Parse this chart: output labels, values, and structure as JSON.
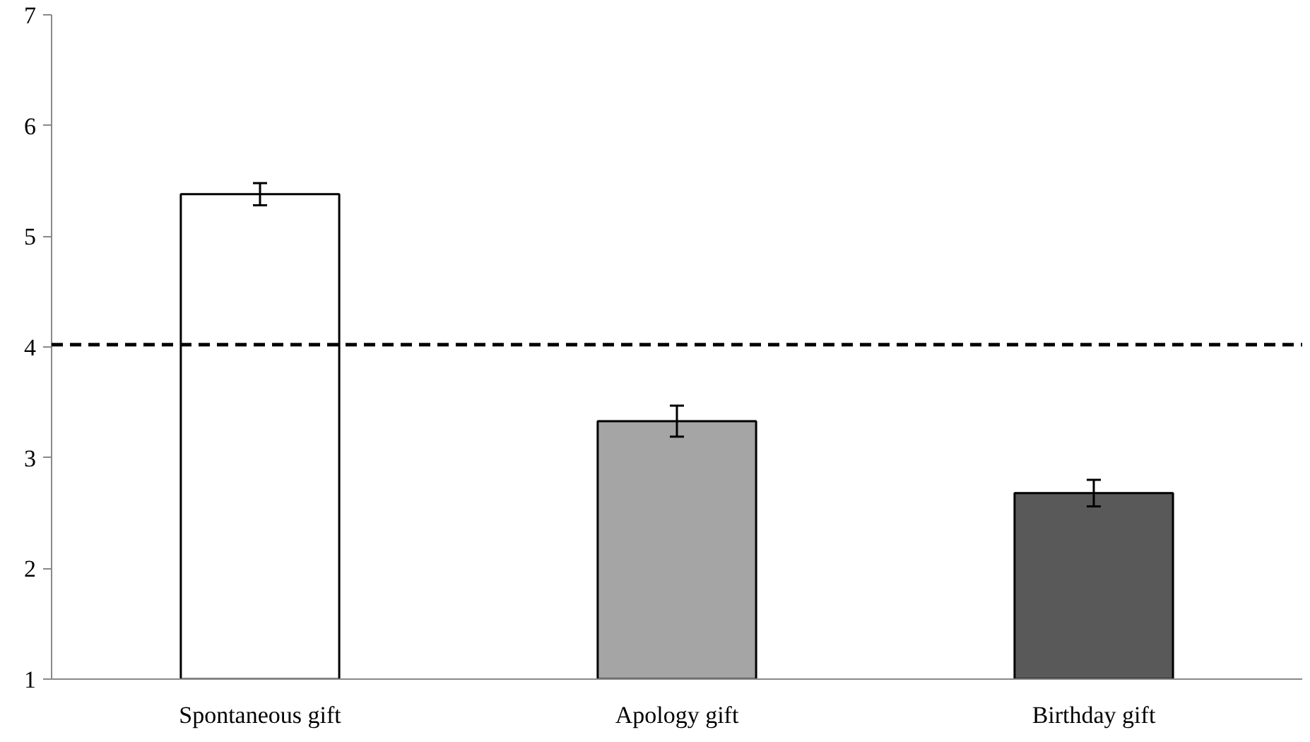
{
  "chart_data": {
    "type": "bar",
    "categories": [
      "Spontaneous gift",
      "Apology gift",
      "Birthday gift"
    ],
    "values": [
      5.38,
      3.33,
      2.68
    ],
    "colors": [
      "#ffffff",
      "#a5a5a5",
      "#595959"
    ],
    "errors": [
      0.1,
      0.14,
      0.12
    ],
    "ylim": [
      1,
      7
    ],
    "yticks": [
      1,
      2,
      3,
      4,
      5,
      6,
      7
    ],
    "ref_lines": [
      {
        "axis": "y",
        "value": 4.02,
        "color": "#000000",
        "line_style": "dashed"
      }
    ],
    "grid": false
  }
}
